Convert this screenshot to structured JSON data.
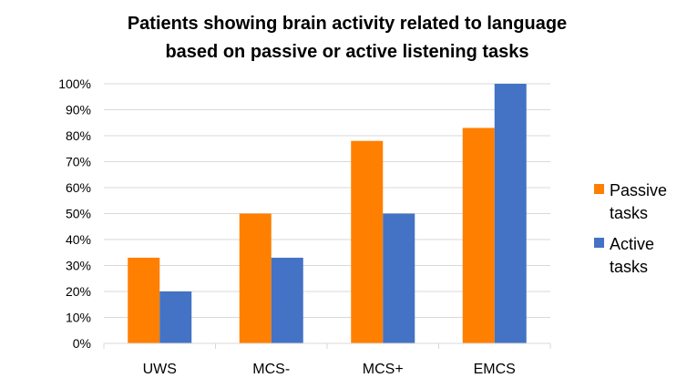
{
  "chart_data": {
    "type": "bar",
    "title": "Patients showing brain activity related to language based on passive or active listening tasks",
    "title_lines": [
      "Patients showing brain activity related to language",
      "based on passive or active listening tasks"
    ],
    "xlabel": "",
    "ylabel": "",
    "categories": [
      "UWS",
      "MCS-",
      "MCS+",
      "EMCS"
    ],
    "series": [
      {
        "name": "Passive tasks",
        "legend_lines": [
          "Passive",
          "tasks"
        ],
        "color": "#ff7f00",
        "values": [
          33,
          50,
          78,
          83
        ]
      },
      {
        "name": "Active tasks",
        "legend_lines": [
          "Active",
          "tasks"
        ],
        "color": "#4472c4",
        "values": [
          20,
          33,
          50,
          100
        ]
      }
    ],
    "ylim": [
      0,
      100
    ],
    "y_ticks": [
      "0%",
      "10%",
      "20%",
      "30%",
      "40%",
      "50%",
      "60%",
      "70%",
      "80%",
      "90%",
      "100%"
    ],
    "grid": true,
    "legend_position": "right"
  }
}
